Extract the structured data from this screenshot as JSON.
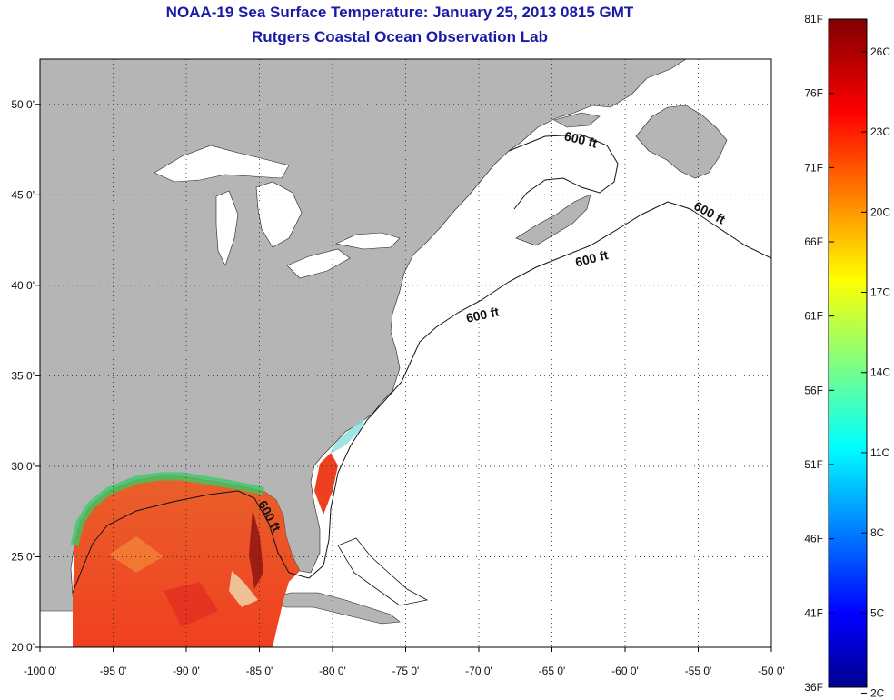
{
  "title": "NOAA-19 Sea Surface Temperature:  January 25, 2013 0815 GMT",
  "subtitle": "Rutgers Coastal Ocean Observation Lab",
  "map": {
    "lon_range": [
      -100,
      -50
    ],
    "lat_range": [
      20,
      52.5
    ],
    "lon_ticks": [
      "-100 0'",
      "-95 0'",
      "-90 0'",
      "-85 0'",
      "-80 0'",
      "-75 0'",
      "-70 0'",
      "-65 0'",
      "-60 0'",
      "-55 0'",
      "-50 0'"
    ],
    "lat_ticks": [
      "20 0'",
      "25 0'",
      "30 0'",
      "35 0'",
      "40 0'",
      "45 0'",
      "50 0'"
    ],
    "depth_contour_label": "600 ft",
    "land_color": "#b5b5b5",
    "ocean_color": "#ffffff",
    "grid": "dotted"
  },
  "colorbar": {
    "fahrenheit_labels": [
      "81F",
      "76F",
      "71F",
      "66F",
      "61F",
      "56F",
      "51F",
      "46F",
      "41F",
      "36F"
    ],
    "celsius_labels": [
      "26C",
      "23C",
      "20C",
      "17C",
      "14C",
      "11C",
      "8C",
      "5C",
      "2C"
    ],
    "range_f": [
      36,
      81
    ]
  }
}
